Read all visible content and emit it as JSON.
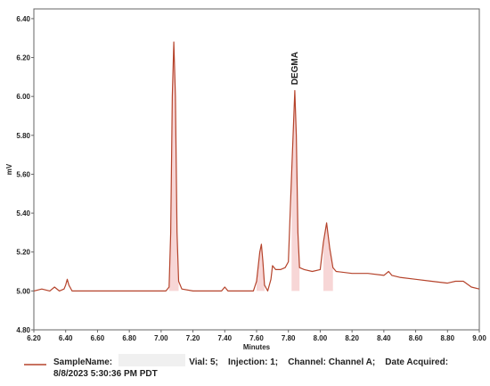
{
  "chart_data": {
    "type": "line",
    "xlabel": "Minutes",
    "ylabel": "mV",
    "xlim": [
      6.2,
      9.0
    ],
    "ylim": [
      4.8,
      6.45
    ],
    "x_ticks": [
      "6.20",
      "6.40",
      "6.60",
      "6.80",
      "7.00",
      "7.20",
      "7.40",
      "7.60",
      "7.80",
      "8.00",
      "8.20",
      "8.40",
      "8.60",
      "8.80",
      "9.00"
    ],
    "y_ticks": [
      "4.80",
      "5.00",
      "5.20",
      "5.40",
      "5.60",
      "5.80",
      "6.00",
      "6.20",
      "6.40"
    ],
    "grid": false,
    "line_color": "#b5432b",
    "peak_color": "#f7d6d6",
    "annotations": [
      {
        "text": "DEGMA",
        "x": 7.84,
        "y": 6.05
      }
    ],
    "series": [
      {
        "points": [
          [
            6.2,
            5.0
          ],
          [
            6.25,
            5.01
          ],
          [
            6.3,
            5.0
          ],
          [
            6.33,
            5.02
          ],
          [
            6.36,
            5.0
          ],
          [
            6.39,
            5.01
          ],
          [
            6.4,
            5.03
          ],
          [
            6.41,
            5.06
          ],
          [
            6.42,
            5.03
          ],
          [
            6.44,
            5.0
          ],
          [
            6.5,
            5.0
          ],
          [
            6.6,
            5.0
          ],
          [
            6.7,
            5.0
          ],
          [
            6.8,
            5.0
          ],
          [
            6.9,
            5.0
          ],
          [
            6.98,
            5.0
          ],
          [
            7.03,
            5.0
          ],
          [
            7.05,
            5.02
          ],
          [
            7.06,
            5.3
          ],
          [
            7.07,
            6.0
          ],
          [
            7.08,
            6.28
          ],
          [
            7.09,
            6.0
          ],
          [
            7.1,
            5.3
          ],
          [
            7.11,
            5.05
          ],
          [
            7.13,
            5.01
          ],
          [
            7.2,
            5.0
          ],
          [
            7.3,
            5.0
          ],
          [
            7.38,
            5.0
          ],
          [
            7.4,
            5.02
          ],
          [
            7.42,
            5.0
          ],
          [
            7.5,
            5.0
          ],
          [
            7.58,
            5.0
          ],
          [
            7.6,
            5.05
          ],
          [
            7.62,
            5.2
          ],
          [
            7.63,
            5.24
          ],
          [
            7.64,
            5.15
          ],
          [
            7.65,
            5.03
          ],
          [
            7.67,
            5.0
          ],
          [
            7.69,
            5.06
          ],
          [
            7.7,
            5.13
          ],
          [
            7.72,
            5.11
          ],
          [
            7.75,
            5.11
          ],
          [
            7.78,
            5.12
          ],
          [
            7.8,
            5.15
          ],
          [
            7.82,
            5.6
          ],
          [
            7.84,
            6.03
          ],
          [
            7.85,
            5.8
          ],
          [
            7.86,
            5.3
          ],
          [
            7.87,
            5.12
          ],
          [
            7.9,
            5.11
          ],
          [
            7.95,
            5.1
          ],
          [
            8.0,
            5.11
          ],
          [
            8.02,
            5.25
          ],
          [
            8.04,
            5.35
          ],
          [
            8.06,
            5.22
          ],
          [
            8.08,
            5.12
          ],
          [
            8.1,
            5.1
          ],
          [
            8.2,
            5.09
          ],
          [
            8.3,
            5.09
          ],
          [
            8.4,
            5.08
          ],
          [
            8.43,
            5.1
          ],
          [
            8.45,
            5.08
          ],
          [
            8.5,
            5.07
          ],
          [
            8.6,
            5.06
          ],
          [
            8.7,
            5.05
          ],
          [
            8.8,
            5.04
          ],
          [
            8.85,
            5.05
          ],
          [
            8.9,
            5.05
          ],
          [
            8.95,
            5.02
          ],
          [
            9.0,
            5.01
          ]
        ]
      }
    ]
  },
  "legend": {
    "line1": "SampleName:                               Vial: 5;    Injection: 1;    Channel: Channel A;    Date Acquired:",
    "line2": "8/8/2023 5:30:36 PM PDT"
  }
}
